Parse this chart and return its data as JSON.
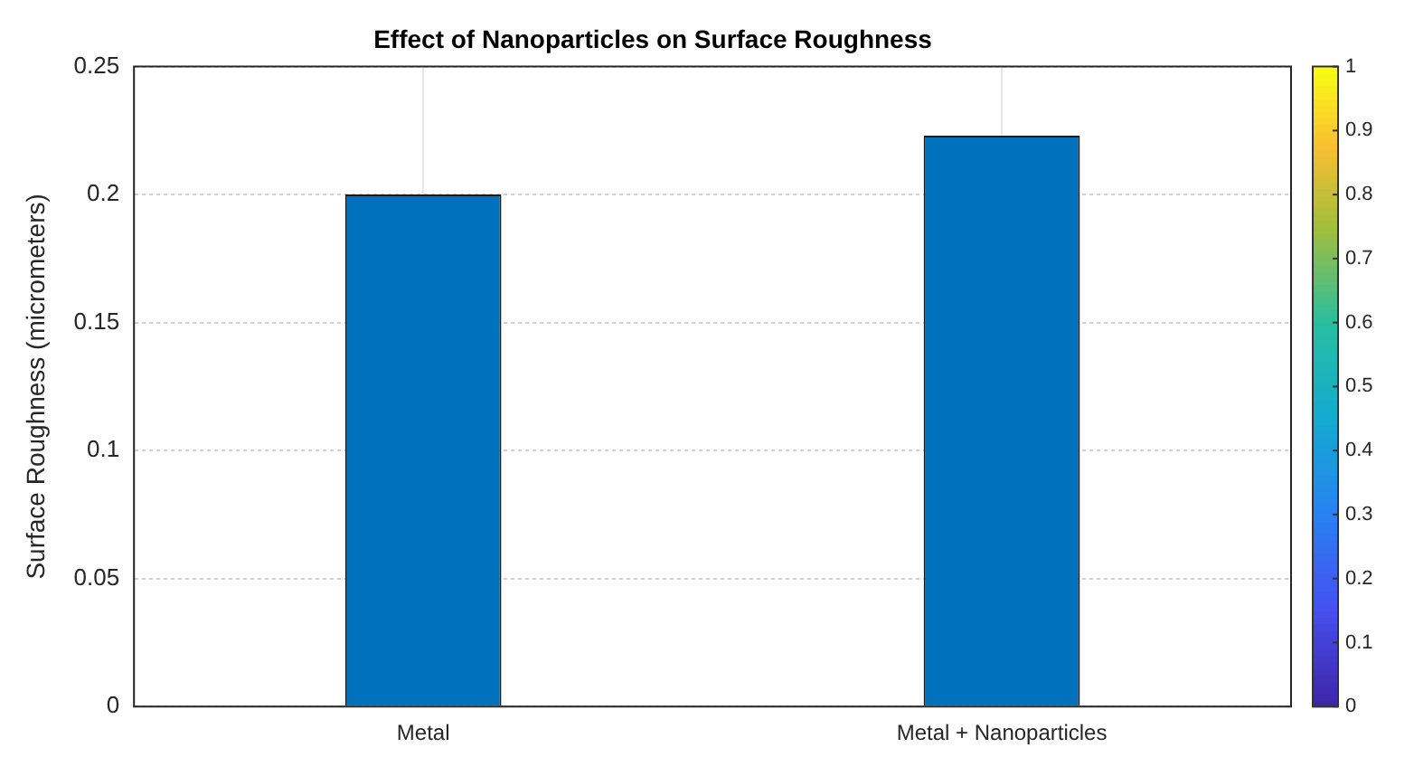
{
  "chart_data": {
    "type": "bar",
    "title": "Effect of Nanoparticles on Surface Roughness",
    "ylabel": "Surface Roughness (micrometers)",
    "categories": [
      "Metal",
      "Metal + Nanoparticles"
    ],
    "values": [
      0.2,
      0.223
    ],
    "color": "#0072bd",
    "ylim": [
      0,
      0.25
    ],
    "yticks": [
      0,
      0.05,
      0.1,
      0.15,
      0.2,
      0.25
    ],
    "grid": true,
    "clim": [
      0,
      1
    ],
    "cticks": [
      0,
      0.1,
      0.2,
      0.3,
      0.4,
      0.5,
      0.6,
      0.7,
      0.8,
      0.9,
      1
    ]
  }
}
